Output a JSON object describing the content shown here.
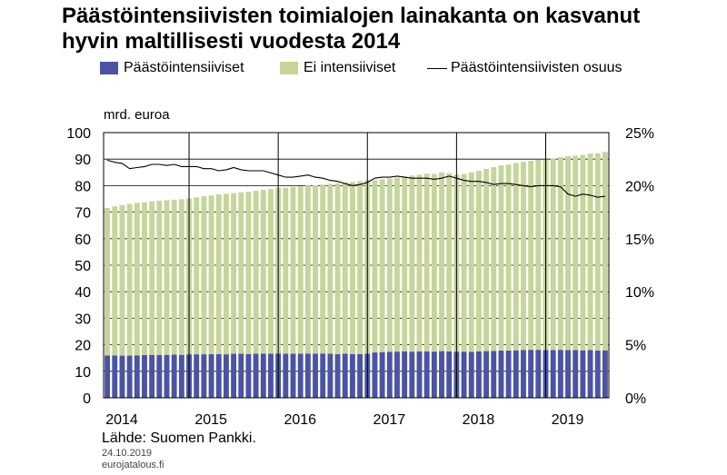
{
  "title": "Päästöintensiivisten toimialojen lainakanta on kasvanut hyvin maltillisesti vuodesta 2014",
  "legend": {
    "items": [
      {
        "label": "Päästöintensiiviset",
        "color": "#4a54a3",
        "kind": "bar"
      },
      {
        "label": "Ei intensiiviset",
        "color": "#c6d59a",
        "kind": "bar"
      },
      {
        "label": "Päästöintensiivisten osuus",
        "color": "#000000",
        "kind": "line"
      }
    ]
  },
  "source": "Lähde: Suomen Pankki.",
  "date": "24.10.2019",
  "site": "eurojatalous.fi",
  "chart_data": {
    "type": "bar",
    "stacked": true,
    "ylabel_left": "mrd. euroa",
    "ylim_left": [
      0,
      100
    ],
    "yticks_left": [
      "0",
      "10",
      "20",
      "30",
      "40",
      "50",
      "60",
      "70",
      "80",
      "90",
      "100"
    ],
    "ylim_right": [
      0,
      25
    ],
    "yticks_right": [
      "0%",
      "5%",
      "10%",
      "15%",
      "20%",
      "25%"
    ],
    "year_labels": [
      "2014",
      "2015",
      "2016",
      "2017",
      "2018",
      "2019"
    ],
    "grid": true,
    "categories": [
      "2014-01",
      "2014-02",
      "2014-03",
      "2014-04",
      "2014-05",
      "2014-06",
      "2014-07",
      "2014-08",
      "2014-09",
      "2014-10",
      "2014-11",
      "2014-12",
      "2015-01",
      "2015-02",
      "2015-03",
      "2015-04",
      "2015-05",
      "2015-06",
      "2015-07",
      "2015-08",
      "2015-09",
      "2015-10",
      "2015-11",
      "2015-12",
      "2016-01",
      "2016-02",
      "2016-03",
      "2016-04",
      "2016-05",
      "2016-06",
      "2016-07",
      "2016-08",
      "2016-09",
      "2016-10",
      "2016-11",
      "2016-12",
      "2017-01",
      "2017-02",
      "2017-03",
      "2017-04",
      "2017-05",
      "2017-06",
      "2017-07",
      "2017-08",
      "2017-09",
      "2017-10",
      "2017-11",
      "2017-12",
      "2018-01",
      "2018-02",
      "2018-03",
      "2018-04",
      "2018-05",
      "2018-06",
      "2018-07",
      "2018-08",
      "2018-09",
      "2018-10",
      "2018-11",
      "2018-12",
      "2019-01",
      "2019-02",
      "2019-03",
      "2019-04",
      "2019-05",
      "2019-06",
      "2019-07",
      "2019-08"
    ],
    "series": [
      {
        "name": "Päästöintensiiviset",
        "axis": "left",
        "color": "#4a54a3",
        "values": [
          16.0,
          16.0,
          15.9,
          15.9,
          16.0,
          16.1,
          16.2,
          16.2,
          16.2,
          16.3,
          16.2,
          16.4,
          16.4,
          16.4,
          16.5,
          16.5,
          16.4,
          16.6,
          16.6,
          16.5,
          16.6,
          16.7,
          16.6,
          16.7,
          16.6,
          16.6,
          16.6,
          16.7,
          16.6,
          16.7,
          16.6,
          16.5,
          16.6,
          16.5,
          16.5,
          16.6,
          17.1,
          17.2,
          17.3,
          17.4,
          17.5,
          17.4,
          17.5,
          17.5,
          17.4,
          17.6,
          17.5,
          17.4,
          17.4,
          17.3,
          17.5,
          17.6,
          17.7,
          17.8,
          17.8,
          17.9,
          18.0,
          18.1,
          18.1,
          18.0,
          18.0,
          18.1,
          18.0,
          18.0,
          17.9,
          18.0,
          17.8,
          17.9
        ]
      },
      {
        "name": "Ei intensiiviset",
        "axis": "left",
        "color": "#c6d59a",
        "values": [
          55.6,
          56.2,
          56.8,
          57.2,
          57.5,
          57.6,
          57.9,
          58.1,
          58.3,
          58.4,
          58.7,
          58.8,
          59.2,
          59.6,
          59.8,
          60.2,
          60.5,
          60.6,
          60.9,
          61.2,
          61.5,
          61.7,
          62.1,
          62.4,
          62.6,
          62.9,
          63.1,
          63.4,
          63.6,
          63.7,
          64.0,
          64.4,
          64.6,
          64.9,
          65.2,
          65.4,
          65.0,
          65.2,
          65.4,
          65.6,
          66.0,
          66.4,
          66.6,
          67.0,
          67.0,
          67.4,
          67.2,
          66.8,
          67.0,
          67.7,
          68.1,
          68.7,
          69.3,
          69.8,
          70.1,
          70.6,
          71.0,
          71.3,
          71.7,
          71.9,
          72.2,
          72.6,
          73.1,
          73.3,
          73.7,
          74.1,
          74.4,
          74.8
        ]
      },
      {
        "name": "Päästöintensiivisten osuus",
        "axis": "right",
        "type": "line",
        "color": "#000000",
        "values": [
          22.4,
          22.2,
          22.1,
          21.6,
          21.7,
          21.8,
          22.0,
          22.0,
          21.9,
          22.0,
          21.8,
          21.8,
          21.8,
          21.6,
          21.6,
          21.4,
          21.5,
          21.7,
          21.5,
          21.4,
          21.4,
          21.4,
          21.2,
          21.0,
          20.8,
          20.8,
          20.9,
          21.0,
          20.8,
          20.7,
          20.5,
          20.4,
          20.2,
          20.0,
          20.1,
          20.3,
          20.7,
          20.8,
          20.8,
          20.9,
          20.8,
          20.7,
          20.7,
          20.7,
          20.6,
          20.7,
          20.9,
          20.7,
          20.5,
          20.4,
          20.4,
          20.3,
          20.1,
          20.2,
          20.2,
          20.1,
          20.0,
          19.9,
          20.0,
          20.0,
          20.0,
          19.9,
          19.2,
          19.0,
          19.2,
          19.1,
          18.9,
          19.0
        ]
      }
    ]
  }
}
